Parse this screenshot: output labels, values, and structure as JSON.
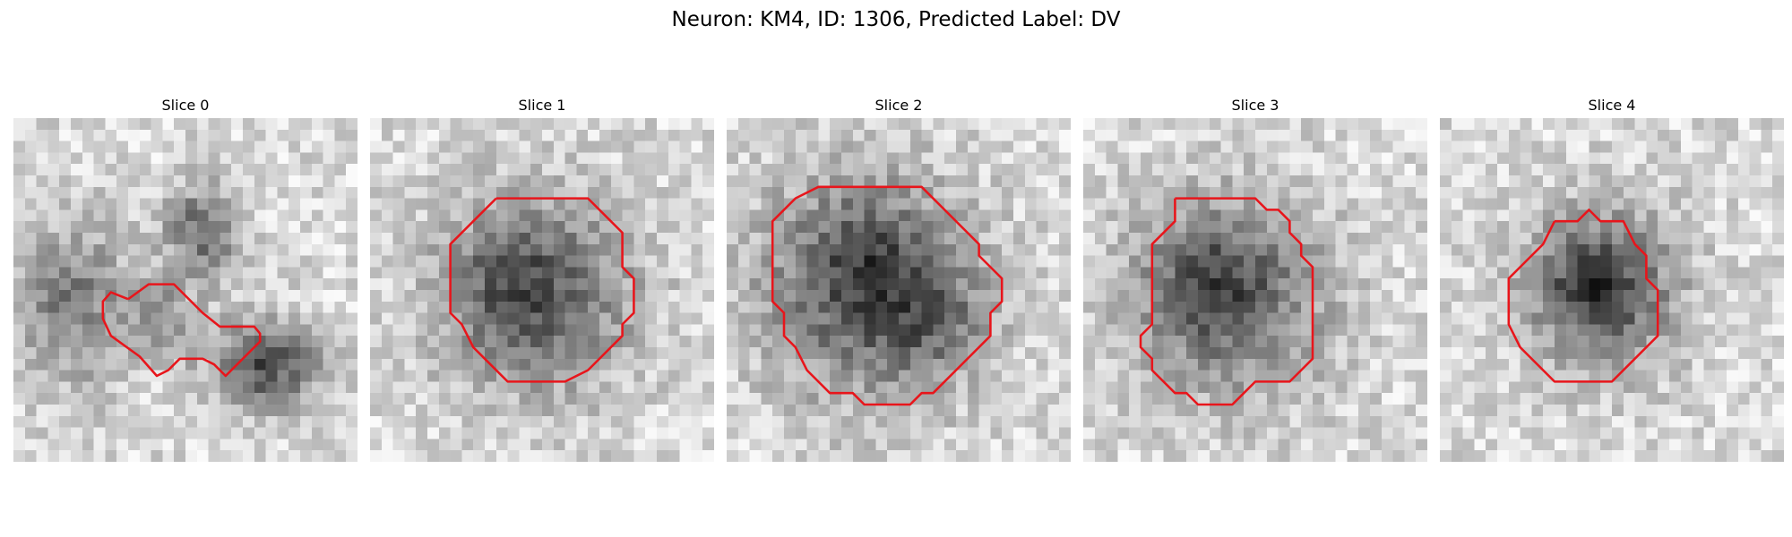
{
  "figure": {
    "title": "Neuron: KM4, ID: 1306, Predicted Label: DV",
    "contour_color": "#e8151b"
  },
  "panels": [
    {
      "title": "Slice 0",
      "blobs": [
        {
          "cx": 5,
          "cy": 16,
          "rx": 5,
          "ry": 7,
          "strength": 0.55
        },
        {
          "cx": 22,
          "cy": 21.5,
          "rx": 4.5,
          "ry": 3.8,
          "strength": 0.85
        },
        {
          "cx": 16.5,
          "cy": 10,
          "rx": 3.2,
          "ry": 4,
          "strength": 0.7
        },
        {
          "cx": 12.5,
          "cy": 16.5,
          "rx": 3,
          "ry": 2.5,
          "strength": 0.4
        },
        {
          "cx": 13.5,
          "cy": 20,
          "rx": 2.5,
          "ry": 2,
          "strength": 0.25
        }
      ],
      "contour": [
        [
          10,
          15.8
        ],
        [
          11.8,
          14.5
        ],
        [
          14,
          14.5
        ],
        [
          16.5,
          17
        ],
        [
          18,
          18.2
        ],
        [
          21,
          18.2
        ],
        [
          21.5,
          18.8
        ],
        [
          21.5,
          19.5
        ],
        [
          18.5,
          22.5
        ],
        [
          17.5,
          21.5
        ],
        [
          16.5,
          21
        ],
        [
          14.5,
          21
        ],
        [
          13.5,
          22
        ],
        [
          12.5,
          22.5
        ],
        [
          11,
          20.8
        ],
        [
          8.5,
          19
        ],
        [
          7.8,
          17.5
        ],
        [
          7.8,
          16
        ],
        [
          8.5,
          15.2
        ],
        [
          10,
          15.8
        ]
      ]
    },
    {
      "title": "Slice 1",
      "blobs": [
        {
          "cx": 14.5,
          "cy": 15.5,
          "rx": 8.5,
          "ry": 8.5,
          "strength": 0.7
        },
        {
          "cx": 12,
          "cy": 14,
          "rx": 5,
          "ry": 5,
          "strength": 0.25
        }
      ],
      "contour": [
        [
          11,
          7
        ],
        [
          19,
          7
        ],
        [
          22,
          10
        ],
        [
          22,
          13
        ],
        [
          23,
          14
        ],
        [
          23,
          17
        ],
        [
          22,
          18
        ],
        [
          22,
          19
        ],
        [
          19,
          22
        ],
        [
          17,
          23
        ],
        [
          12,
          23
        ],
        [
          10,
          21
        ],
        [
          9,
          20
        ],
        [
          8,
          18
        ],
        [
          7,
          17
        ],
        [
          7,
          11
        ],
        [
          9,
          9
        ],
        [
          11,
          7
        ]
      ]
    },
    {
      "title": "Slice 2",
      "blobs": [
        {
          "cx": 12,
          "cy": 14.5,
          "rx": 9,
          "ry": 9.5,
          "strength": 0.8
        },
        {
          "cx": 18,
          "cy": 18,
          "rx": 5,
          "ry": 5,
          "strength": 0.35
        },
        {
          "cx": 12,
          "cy": 12,
          "rx": 4,
          "ry": 4,
          "strength": 0.2
        }
      ],
      "contour": [
        [
          10,
          6
        ],
        [
          17,
          6
        ],
        [
          19,
          8
        ],
        [
          21,
          10
        ],
        [
          22,
          11
        ],
        [
          22,
          12
        ],
        [
          23,
          13
        ],
        [
          24,
          14
        ],
        [
          24,
          16
        ],
        [
          23,
          17
        ],
        [
          23,
          19
        ],
        [
          20,
          22
        ],
        [
          18,
          24
        ],
        [
          17,
          24
        ],
        [
          16,
          25
        ],
        [
          12,
          25
        ],
        [
          11,
          24
        ],
        [
          9,
          24
        ],
        [
          7,
          22
        ],
        [
          6,
          20
        ],
        [
          5,
          19
        ],
        [
          5,
          17
        ],
        [
          4,
          16
        ],
        [
          4,
          9
        ],
        [
          6,
          7
        ],
        [
          8,
          6
        ],
        [
          10,
          6
        ]
      ]
    },
    {
      "title": "Slice 3",
      "blobs": [
        {
          "cx": 12.5,
          "cy": 15.5,
          "rx": 8.5,
          "ry": 8.5,
          "strength": 0.75
        },
        {
          "cx": 11,
          "cy": 14,
          "rx": 4,
          "ry": 4,
          "strength": 0.25
        }
      ],
      "contour": [
        [
          8,
          7
        ],
        [
          15,
          7
        ],
        [
          16,
          8
        ],
        [
          17,
          8
        ],
        [
          18,
          9
        ],
        [
          18,
          10
        ],
        [
          19,
          11
        ],
        [
          19,
          12
        ],
        [
          20,
          13
        ],
        [
          20,
          21
        ],
        [
          19,
          22
        ],
        [
          18,
          23
        ],
        [
          15,
          23
        ],
        [
          14,
          24
        ],
        [
          13,
          25
        ],
        [
          10,
          25
        ],
        [
          9,
          24
        ],
        [
          8,
          24
        ],
        [
          6,
          22
        ],
        [
          6,
          21
        ],
        [
          5,
          20
        ],
        [
          5,
          19
        ],
        [
          6,
          18
        ],
        [
          6,
          11
        ],
        [
          8,
          9
        ],
        [
          8,
          7
        ]
      ]
    },
    {
      "title": "Slice 4",
      "blobs": [
        {
          "cx": 14,
          "cy": 15,
          "rx": 6.5,
          "ry": 6.8,
          "strength": 0.85
        },
        {
          "cx": 13,
          "cy": 14,
          "rx": 3.5,
          "ry": 3.5,
          "strength": 0.2
        }
      ],
      "contour": [
        [
          10,
          9
        ],
        [
          12,
          9
        ],
        [
          13,
          8
        ],
        [
          14,
          9
        ],
        [
          16,
          9
        ],
        [
          17,
          11
        ],
        [
          18,
          12
        ],
        [
          18,
          14
        ],
        [
          19,
          15
        ],
        [
          19,
          19
        ],
        [
          17,
          21
        ],
        [
          15,
          23
        ],
        [
          10,
          23
        ],
        [
          7,
          20
        ],
        [
          6,
          18
        ],
        [
          6,
          14
        ],
        [
          7,
          13
        ],
        [
          9,
          11
        ],
        [
          10,
          9
        ]
      ]
    }
  ]
}
